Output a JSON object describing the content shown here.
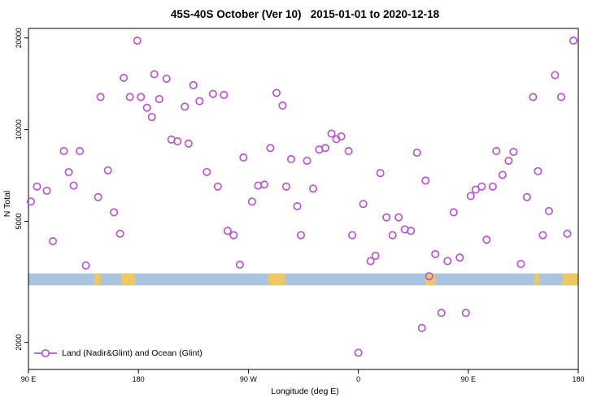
{
  "chart_data": {
    "type": "scatter",
    "title": "45S-40S October (Ver 10)   2015-01-01 to 2020-12-18",
    "xlabel": "Longitude (deg E)",
    "ylabel": "N Total",
    "y_scale": "log",
    "xlim": [
      90,
      540
    ],
    "ylim": [
      1630,
      21500
    ],
    "x_ticks": [
      {
        "value": 90,
        "label": "90 E"
      },
      {
        "value": 180,
        "label": "180"
      },
      {
        "value": 270,
        "label": "90 W"
      },
      {
        "value": 360,
        "label": "0"
      },
      {
        "value": 450,
        "label": "90 E"
      },
      {
        "value": 540,
        "label": "180"
      }
    ],
    "y_ticks": [
      {
        "value": 2000,
        "label": "2000"
      },
      {
        "value": 5000,
        "label": "5000"
      },
      {
        "value": 10000,
        "label": "10000"
      },
      {
        "value": 20000,
        "label": "20000"
      }
    ],
    "legend": [
      {
        "label": "Land (Nadir&Glint) and Ocean (Glint)",
        "marker": "open-circle-with-line"
      }
    ],
    "marker_color": "#BA55D3",
    "ocean_band": {
      "color": "#A9C4DE",
      "value_range": [
        3080,
        3370
      ]
    },
    "land_patches": {
      "color": "#F0C860",
      "lon_ranges": [
        [
          144,
          149
        ],
        [
          166,
          177
        ],
        [
          286,
          300
        ],
        [
          415,
          423
        ],
        [
          504,
          508
        ],
        [
          527,
          540
        ]
      ]
    },
    "points": [
      [
        92,
        5800
      ],
      [
        97,
        6500
      ],
      [
        105,
        6300
      ],
      [
        110,
        4300
      ],
      [
        119,
        8500
      ],
      [
        123,
        7250
      ],
      [
        127,
        6550
      ],
      [
        132,
        8500
      ],
      [
        137,
        3580
      ],
      [
        147,
        6000
      ],
      [
        149,
        12800
      ],
      [
        155,
        7350
      ],
      [
        160,
        5350
      ],
      [
        165,
        4550
      ],
      [
        168,
        14800
      ],
      [
        173,
        12800
      ],
      [
        179,
        19600
      ],
      [
        182,
        12800
      ],
      [
        187,
        11800
      ],
      [
        191,
        11000
      ],
      [
        193,
        15200
      ],
      [
        197,
        12600
      ],
      [
        203,
        14700
      ],
      [
        207,
        9280
      ],
      [
        212,
        9150
      ],
      [
        218,
        11900
      ],
      [
        221,
        9000
      ],
      [
        225,
        14000
      ],
      [
        230,
        12400
      ],
      [
        236,
        7260
      ],
      [
        241,
        13100
      ],
      [
        245,
        6500
      ],
      [
        250,
        13000
      ],
      [
        253,
        4650
      ],
      [
        258,
        4500
      ],
      [
        263,
        3600
      ],
      [
        266,
        8100
      ],
      [
        273,
        5800
      ],
      [
        278,
        6550
      ],
      [
        283,
        6600
      ],
      [
        288,
        8700
      ],
      [
        293,
        13200
      ],
      [
        298,
        12000
      ],
      [
        301,
        6500
      ],
      [
        305,
        8000
      ],
      [
        310,
        5600
      ],
      [
        313,
        4500
      ],
      [
        318,
        7900
      ],
      [
        323,
        6400
      ],
      [
        328,
        8600
      ],
      [
        333,
        8700
      ],
      [
        338,
        9700
      ],
      [
        342,
        9300
      ],
      [
        346,
        9500
      ],
      [
        352,
        8500
      ],
      [
        355,
        4500
      ],
      [
        360,
        1850
      ],
      [
        364,
        5700
      ],
      [
        370,
        3700
      ],
      [
        374,
        3850
      ],
      [
        378,
        7200
      ],
      [
        383,
        5150
      ],
      [
        388,
        4500
      ],
      [
        393,
        5150
      ],
      [
        398,
        4700
      ],
      [
        403,
        4650
      ],
      [
        408,
        8400
      ],
      [
        412,
        2230
      ],
      [
        415,
        6800
      ],
      [
        418,
        3300
      ],
      [
        423,
        3900
      ],
      [
        428,
        2500
      ],
      [
        433,
        3700
      ],
      [
        438,
        5350
      ],
      [
        443,
        3800
      ],
      [
        448,
        2500
      ],
      [
        452,
        6050
      ],
      [
        456,
        6350
      ],
      [
        461,
        6500
      ],
      [
        465,
        4350
      ],
      [
        470,
        6500
      ],
      [
        473,
        8500
      ],
      [
        478,
        7100
      ],
      [
        483,
        7900
      ],
      [
        487,
        8450
      ],
      [
        493,
        3620
      ],
      [
        498,
        6000
      ],
      [
        503,
        12800
      ],
      [
        507,
        7300
      ],
      [
        511,
        4500
      ],
      [
        516,
        5400
      ],
      [
        521,
        15100
      ],
      [
        526,
        12800
      ],
      [
        531,
        4550
      ],
      [
        536,
        19600
      ]
    ]
  }
}
